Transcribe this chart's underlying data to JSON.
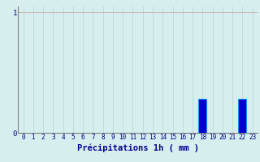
{
  "hours": [
    0,
    1,
    2,
    3,
    4,
    5,
    6,
    7,
    8,
    9,
    10,
    11,
    12,
    13,
    14,
    15,
    16,
    17,
    18,
    19,
    20,
    21,
    22,
    23
  ],
  "values": [
    0,
    0,
    0,
    0,
    0,
    0,
    0,
    0,
    0,
    0,
    0,
    0,
    0,
    0,
    0,
    0,
    0,
    0,
    0.28,
    0,
    0,
    0,
    0.28,
    0
  ],
  "bar_color": "#0000cc",
  "bar_edge_color": "#1e90ff",
  "background_color": "#d6eeee",
  "grid_color": "#b8d4d4",
  "axis_color": "#808080",
  "text_color": "#00008b",
  "xlabel": "Précipitations 1h ( mm )",
  "xlabel_fontsize": 7.5,
  "tick_fontsize": 5.5,
  "ylim": [
    0,
    1.05
  ],
  "xlim": [
    -0.5,
    23.5
  ]
}
